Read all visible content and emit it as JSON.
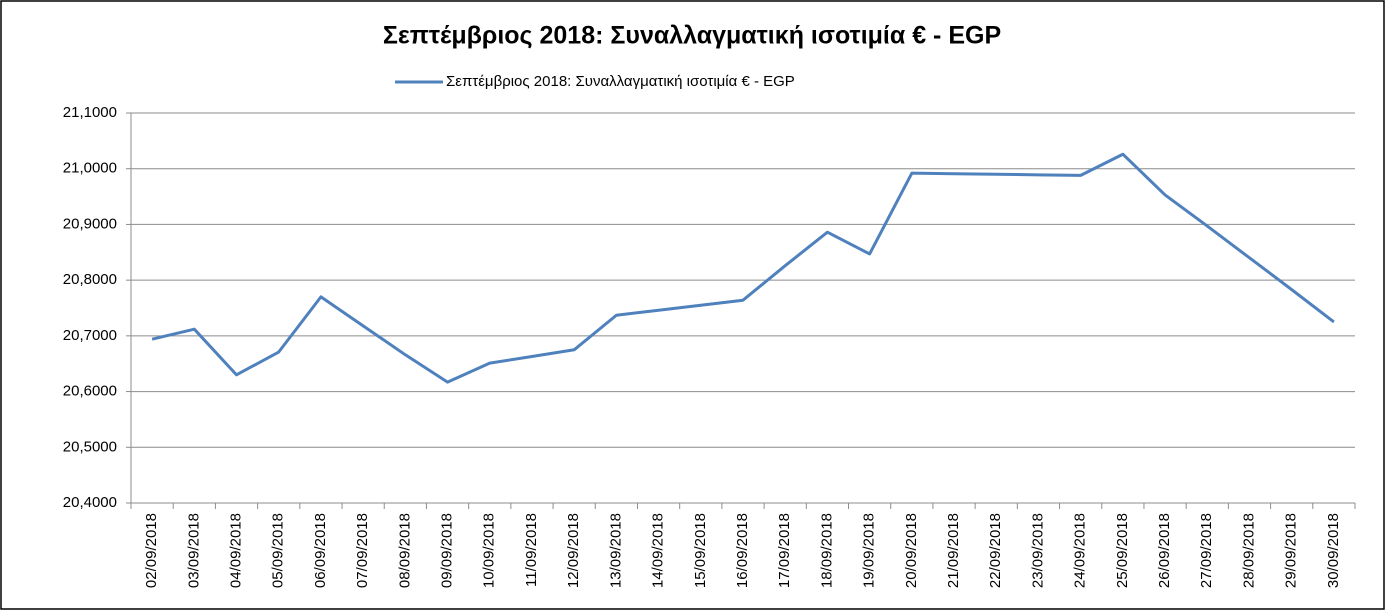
{
  "chart_data": {
    "type": "line",
    "title": "Σεπτέμβριος 2018: Συναλλαγματική ισοτιμία € - EGP",
    "categories": [
      "02/09/2018",
      "03/09/2018",
      "04/09/2018",
      "05/09/2018",
      "06/09/2018",
      "07/09/2018",
      "08/09/2018",
      "09/09/2018",
      "10/09/2018",
      "11/09/2018",
      "12/09/2018",
      "13/09/2018",
      "14/09/2018",
      "15/09/2018",
      "16/09/2018",
      "17/09/2018",
      "18/09/2018",
      "19/09/2018",
      "20/09/2018",
      "21/09/2018",
      "22/09/2018",
      "23/09/2018",
      "24/09/2018",
      "25/09/2018",
      "26/09/2018",
      "27/09/2018",
      "28/09/2018",
      "29/09/2018",
      "30/09/2018"
    ],
    "series": [
      {
        "name": "Σεπτέμβριος 2018: Συναλλαγματική ισοτιμία € - EGP",
        "color": "#4f81bd",
        "values": [
          20.694,
          20.712,
          20.63,
          20.671,
          20.77,
          20.718,
          20.666,
          20.617,
          20.651,
          20.663,
          20.675,
          20.737,
          20.746,
          20.755,
          20.764,
          20.826,
          20.886,
          20.847,
          20.992,
          20.991,
          20.99,
          20.989,
          20.988,
          21.026,
          20.953,
          20.897,
          20.84,
          20.783,
          20.725
        ]
      }
    ],
    "ylim": [
      20.4,
      21.1
    ],
    "yticks": [
      {
        "value": 20.4,
        "label": "20,4000"
      },
      {
        "value": 20.5,
        "label": "20,5000"
      },
      {
        "value": 20.6,
        "label": "20,6000"
      },
      {
        "value": 20.7,
        "label": "20,7000"
      },
      {
        "value": 20.8,
        "label": "20,8000"
      },
      {
        "value": 20.9,
        "label": "20,9000"
      },
      {
        "value": 21.0,
        "label": "21,0000"
      },
      {
        "value": 21.1,
        "label": "21,1000"
      }
    ],
    "grid": true,
    "legend": "top"
  }
}
